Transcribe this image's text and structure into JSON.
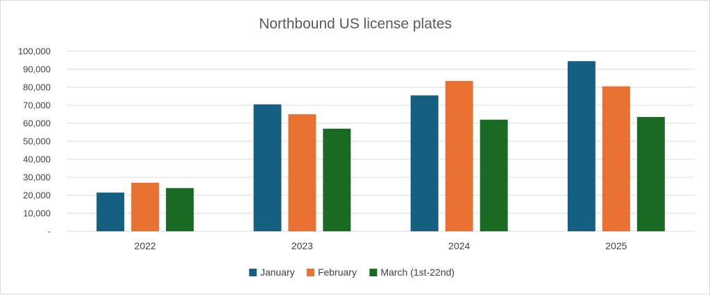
{
  "chart_data": {
    "type": "bar",
    "title": "Northbound US license plates",
    "categories": [
      "2022",
      "2023",
      "2024",
      "2025"
    ],
    "series": [
      {
        "name": "January",
        "color": "#156082",
        "values": [
          21500,
          70500,
          75500,
          94500
        ]
      },
      {
        "name": "February",
        "color": "#E97132",
        "values": [
          27000,
          65000,
          83500,
          80500
        ]
      },
      {
        "name": "March (1st-22nd)",
        "color": "#196B24",
        "values": [
          24000,
          57000,
          62000,
          63500
        ]
      }
    ],
    "ylim": [
      0,
      100000
    ],
    "yticks": [
      {
        "value": 0,
        "label": "-"
      },
      {
        "value": 10000,
        "label": "10,000"
      },
      {
        "value": 20000,
        "label": "20,000"
      },
      {
        "value": 30000,
        "label": "30,000"
      },
      {
        "value": 40000,
        "label": "40,000"
      },
      {
        "value": 50000,
        "label": "50,000"
      },
      {
        "value": 60000,
        "label": "60,000"
      },
      {
        "value": 70000,
        "label": "70,000"
      },
      {
        "value": 80000,
        "label": "80,000"
      },
      {
        "value": 90000,
        "label": "90,000"
      },
      {
        "value": 100000,
        "label": "100,000"
      }
    ],
    "grid": true,
    "legend": "bottom",
    "gridline_color": "#d9d9d9"
  }
}
